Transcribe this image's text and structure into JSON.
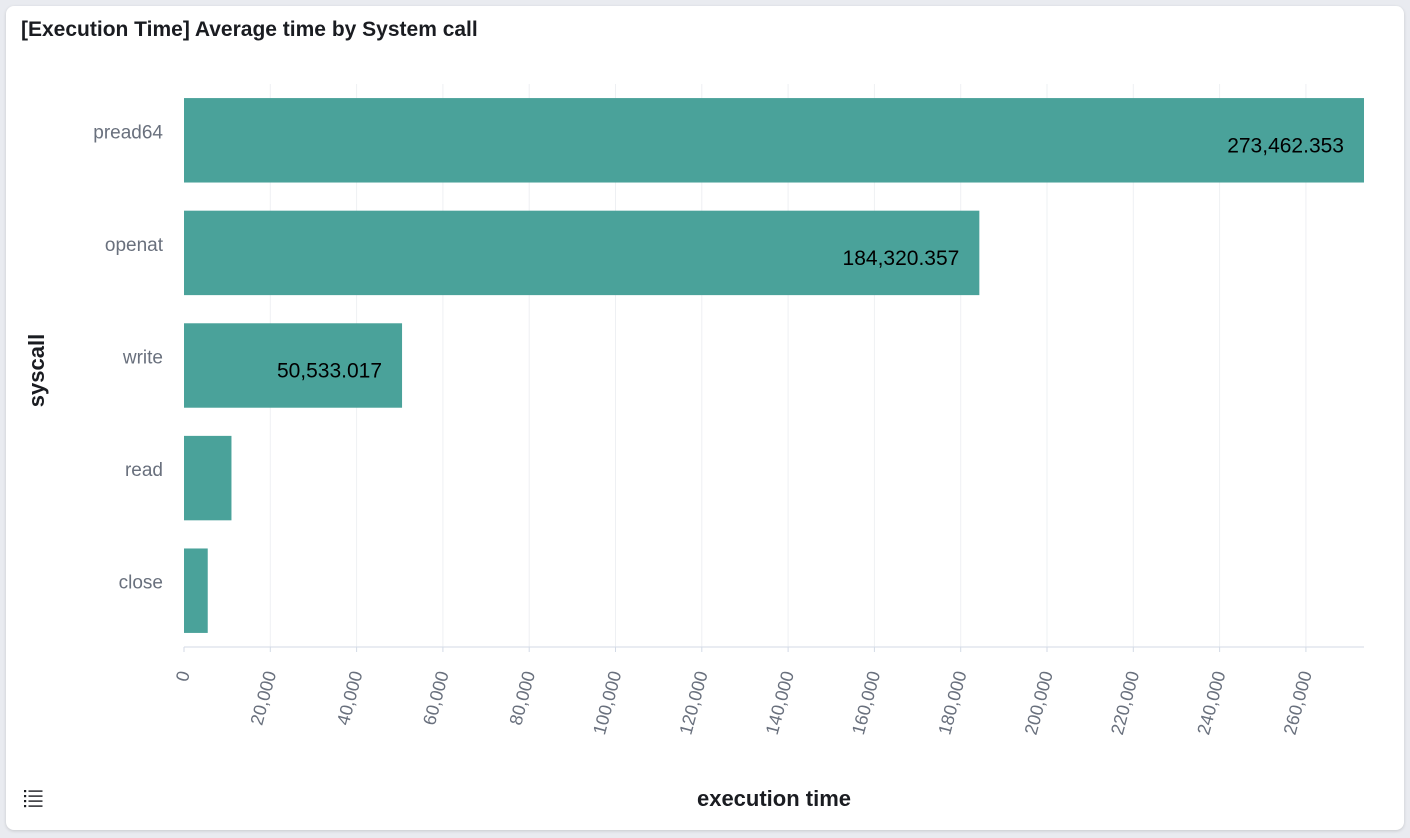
{
  "panel": {
    "title": "[Execution Time] Average time by System call"
  },
  "legend_toggle": {
    "icon": "list-icon"
  },
  "colors": {
    "bar": "#4aa29a",
    "grid": "#eef0f3",
    "axis_text": "#69707d",
    "title_text": "#1a1c21",
    "value_label": "#000000"
  },
  "chart_data": {
    "type": "bar",
    "orientation": "horizontal",
    "title": "[Execution Time] Average time by System call",
    "xlabel": "execution time",
    "ylabel": "syscall",
    "categories": [
      "pread64",
      "openat",
      "write",
      "read",
      "close"
    ],
    "values": [
      273462.353,
      184320.357,
      50533.017,
      11000,
      5500
    ],
    "value_labels": [
      "273,462.353",
      "184,320.357",
      "50,533.017",
      "",
      ""
    ],
    "xlim": [
      0,
      273462.353
    ],
    "xticks": [
      0,
      20000,
      40000,
      60000,
      80000,
      100000,
      120000,
      140000,
      160000,
      180000,
      200000,
      220000,
      240000,
      260000
    ],
    "xtick_labels": [
      "0",
      "20,000",
      "40,000",
      "60,000",
      "80,000",
      "100,000",
      "120,000",
      "140,000",
      "160,000",
      "180,000",
      "200,000",
      "220,000",
      "240,000",
      "260,000"
    ],
    "grid": true,
    "legend": "none"
  }
}
